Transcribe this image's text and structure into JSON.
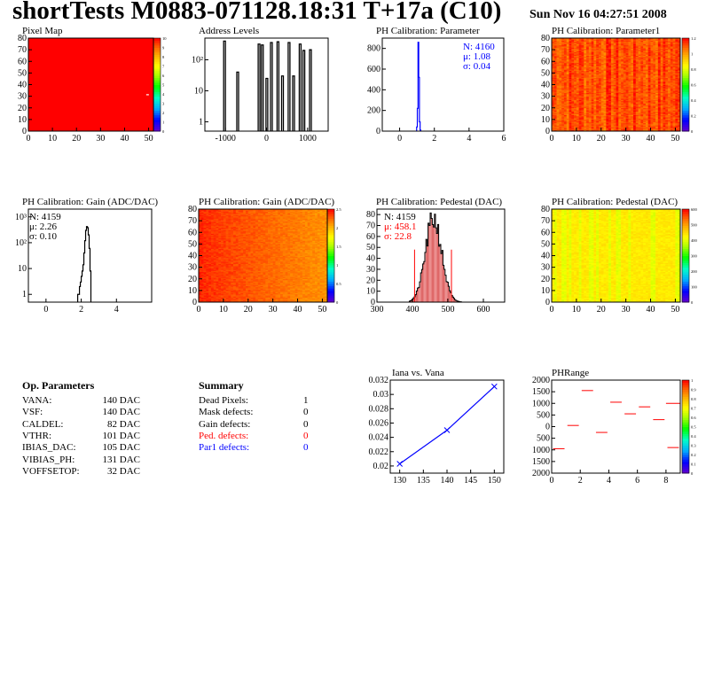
{
  "header": {
    "title": "shortTests M0883-071128.18:31 T+17a (C10)",
    "date": "Sun Nov 16 04:27:51 2008"
  },
  "chart_data": [
    {
      "id": "pixel-map",
      "type": "heatmap",
      "title": "Pixel Map",
      "xlim": [
        0,
        52
      ],
      "ylim": [
        0,
        80
      ],
      "xticks": [
        0,
        10,
        20,
        30,
        40,
        50
      ],
      "yticks": [
        0,
        10,
        20,
        30,
        40,
        50,
        60,
        70,
        80
      ],
      "palette_ticks": [
        0,
        1,
        2,
        3,
        4,
        5,
        6,
        7,
        8,
        9,
        10
      ],
      "fill_value": 10,
      "fill_color": "#ff0000",
      "odd_cells": [
        {
          "x": 49,
          "y": 31,
          "value": 9
        }
      ]
    },
    {
      "id": "address-levels",
      "type": "bar",
      "title": "Address Levels",
      "xlim": [
        -1500,
        1500
      ],
      "ylog": true,
      "ylim": [
        0.5,
        500
      ],
      "xticks": [
        -1000,
        0,
        1000
      ],
      "yticks": [
        1,
        10,
        100
      ],
      "ytick_labels": [
        "1",
        "10",
        "10²"
      ],
      "peaks": [
        {
          "x": -1000,
          "y": 400
        },
        {
          "x": -680,
          "y": 40
        },
        {
          "x": -160,
          "y": 320
        },
        {
          "x": -80,
          "y": 300
        },
        {
          "x": 30,
          "y": 25
        },
        {
          "x": 140,
          "y": 360
        },
        {
          "x": 300,
          "y": 380
        },
        {
          "x": 410,
          "y": 30
        },
        {
          "x": 570,
          "y": 360
        },
        {
          "x": 680,
          "y": 30
        },
        {
          "x": 840,
          "y": 320
        },
        {
          "x": 930,
          "y": 200
        },
        {
          "x": 1090,
          "y": 210
        }
      ]
    },
    {
      "id": "ph-param-hist",
      "type": "bar",
      "title": "PH Calibration: Parameter",
      "xlim": [
        -1,
        6
      ],
      "ylim": [
        0,
        900
      ],
      "xticks": [
        0,
        2,
        4,
        6
      ],
      "yticks": [
        0,
        200,
        400,
        600,
        800
      ],
      "x": [
        0.98,
        1.02,
        1.06,
        1.1,
        1.14,
        1.18
      ],
      "values": [
        40,
        220,
        860,
        520,
        90,
        10
      ],
      "stats": {
        "n": "N: 4160",
        "mu": "μ: 1.08",
        "sigma": "σ: 0.04"
      }
    },
    {
      "id": "ph-param1-map",
      "type": "heatmap",
      "title": "PH Calibration: Parameter1",
      "xlim": [
        0,
        52
      ],
      "ylim": [
        0,
        80
      ],
      "xticks": [
        0,
        10,
        20,
        30,
        40,
        50
      ],
      "yticks": [
        0,
        10,
        20,
        30,
        40,
        50,
        60,
        70,
        80
      ],
      "zlim": [
        0,
        1.2
      ],
      "palette_ticks": [
        0,
        0.2,
        0.4,
        0.6,
        0.8,
        1,
        1.2
      ],
      "pattern": "value 0.9-1.15, mostly red-orange with vertical streaks"
    },
    {
      "id": "gain-hist",
      "type": "bar",
      "title": "PH Calibration: Gain (ADC/DAC)",
      "xlim": [
        -1,
        6
      ],
      "ylog": true,
      "ylim": [
        0.5,
        2000
      ],
      "xticks": [
        0,
        2,
        4
      ],
      "yticks": [
        1,
        10,
        100,
        1000
      ],
      "ytick_labels": [
        "1",
        "10",
        "10²",
        "10³"
      ],
      "x": [
        1.8,
        1.85,
        1.9,
        1.95,
        2.0,
        2.05,
        2.1,
        2.15,
        2.2,
        2.25,
        2.3,
        2.35,
        2.4,
        2.45,
        2.5
      ],
      "values": [
        1,
        1,
        2,
        3,
        5,
        8,
        14,
        40,
        120,
        300,
        420,
        380,
        200,
        60,
        8
      ],
      "stats": {
        "n": "N: 4159",
        "mu": "μ: 2.26",
        "sigma": "σ: 0.10"
      }
    },
    {
      "id": "gain-map",
      "type": "heatmap",
      "title": "PH Calibration: Gain (ADC/DAC)",
      "xlim": [
        0,
        52
      ],
      "ylim": [
        0,
        80
      ],
      "xticks": [
        0,
        10,
        20,
        30,
        40,
        50
      ],
      "yticks": [
        0,
        10,
        20,
        30,
        40,
        50,
        60,
        70,
        80
      ],
      "zlim": [
        0,
        2.5
      ],
      "palette_ticks": [
        0,
        0.5,
        1,
        1.5,
        2,
        2.5
      ],
      "pattern": "value 1.9-2.5, red upper left fading to orange on the right"
    },
    {
      "id": "pedestal-hist",
      "type": "bar",
      "title": "PH Calibration: Pedestal (DAC)",
      "xlim": [
        300,
        660
      ],
      "ylim": [
        0,
        85
      ],
      "xticks": [
        300,
        400,
        500,
        600
      ],
      "yticks": [
        0,
        10,
        20,
        30,
        40,
        50,
        60,
        70,
        80
      ],
      "mean": 458.1,
      "sigma": 22.8,
      "peak": 76,
      "cut_lines": [
        406,
        510
      ],
      "stats": {
        "n": "N: 4159",
        "mu": "μ: 458.1",
        "sigma": "σ: 22.8"
      }
    },
    {
      "id": "pedestal-map",
      "type": "heatmap",
      "title": "PH Calibration: Pedestal (DAC)",
      "xlim": [
        0,
        52
      ],
      "ylim": [
        0,
        80
      ],
      "xticks": [
        0,
        10,
        20,
        30,
        40,
        50
      ],
      "yticks": [
        0,
        10,
        20,
        30,
        40,
        50,
        60,
        70,
        80
      ],
      "zlim": [
        0,
        600
      ],
      "palette_ticks": [
        0,
        100,
        200,
        300,
        400,
        500,
        600
      ],
      "pattern": "value 400-520, yellow with green-yellow columns"
    },
    {
      "id": "iana-vana",
      "type": "line",
      "title": "Iana vs. Vana",
      "xlim": [
        128,
        152
      ],
      "ylim": [
        0.019,
        0.032
      ],
      "xticks": [
        130,
        135,
        140,
        145,
        150
      ],
      "yticks": [
        0.02,
        0.022,
        0.024,
        0.026,
        0.028,
        0.03,
        0.032
      ],
      "x": [
        130,
        140,
        150
      ],
      "values": [
        0.0203,
        0.025,
        0.0311
      ]
    },
    {
      "id": "ph-range",
      "type": "scatter",
      "title": "PHRange",
      "xlim": [
        0,
        9
      ],
      "ylim": [
        -2000,
        2000
      ],
      "xticks": [
        0,
        2,
        4,
        6,
        8
      ],
      "yticks": [
        -2000,
        -1500,
        -1000,
        -500,
        0,
        500,
        1000,
        1500,
        2000
      ],
      "ytick_labels": [
        "2000",
        "1500",
        "1000",
        "500",
        "0",
        "500",
        "1000",
        "1500",
        "2000"
      ],
      "palette_ticks": [
        0,
        0.1,
        0.2,
        0.3,
        0.4,
        0.5,
        0.6,
        0.7,
        0.8,
        0.9,
        1
      ],
      "x": [
        0.5,
        1.5,
        2.5,
        3.5,
        4.5,
        5.5,
        6.5,
        7.5,
        8.5
      ],
      "values": [
        -950,
        50,
        1550,
        -250,
        1050,
        550,
        850,
        300,
        -900
      ],
      "extra_segments": [
        {
          "x0": 8,
          "x1": 9,
          "y": 1000
        }
      ]
    }
  ],
  "op_params": {
    "title": "Op. Parameters",
    "rows": [
      {
        "name": "VANA:",
        "value": "140 DAC"
      },
      {
        "name": "VSF:",
        "value": "140 DAC"
      },
      {
        "name": "CALDEL:",
        "value": "82 DAC"
      },
      {
        "name": "VTHR:",
        "value": "101 DAC"
      },
      {
        "name": "IBIAS_DAC:",
        "value": "105 DAC"
      },
      {
        "name": "VIBIAS_PH:",
        "value": "131 DAC"
      },
      {
        "name": "VOFFSETOP:",
        "value": "32 DAC"
      }
    ]
  },
  "summary": {
    "title": "Summary",
    "rows": [
      {
        "name": "Dead Pixels:",
        "value": "1",
        "color": "#000000"
      },
      {
        "name": "Mask defects:",
        "value": "0",
        "color": "#000000"
      },
      {
        "name": "Gain defects:",
        "value": "0",
        "color": "#000000"
      },
      {
        "name": "Ped. defects:",
        "value": "0",
        "color": "#ff0000"
      },
      {
        "name": "Par1 defects:",
        "value": "0",
        "color": "#0000ff"
      }
    ]
  }
}
